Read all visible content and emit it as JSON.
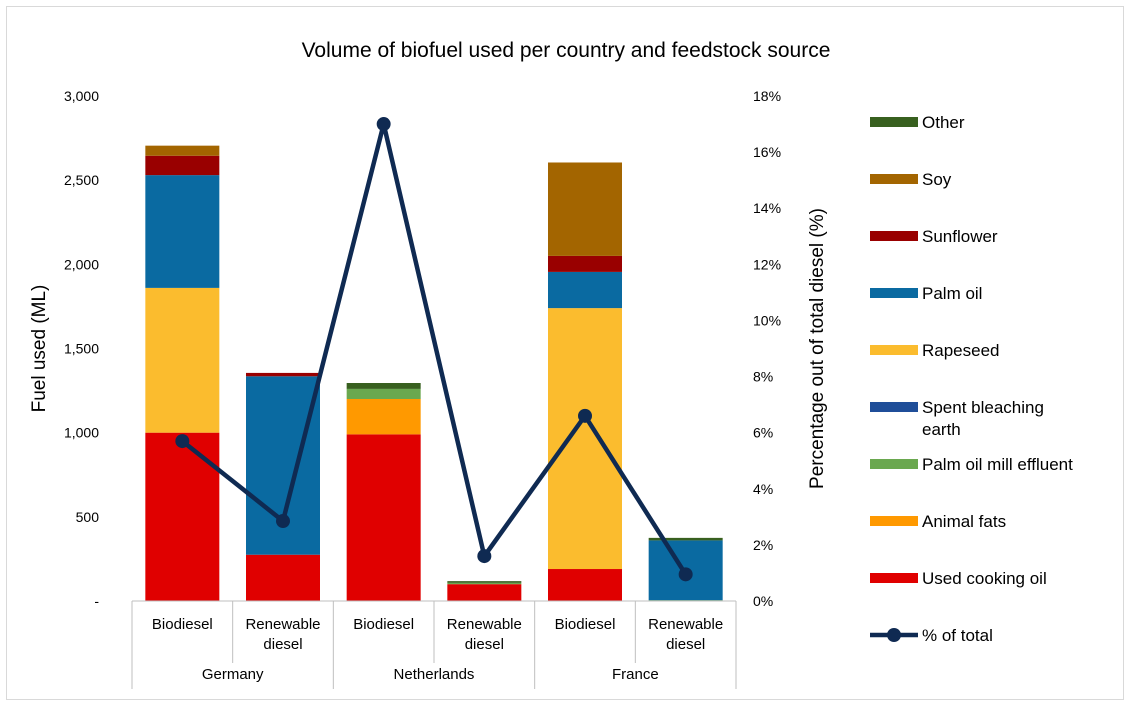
{
  "chart_data": {
    "type": "bar",
    "title": "Volume of biofuel used per country and feedstock source",
    "ylabel": "Fuel used (ML)",
    "y2label": "Percentage out of total diesel (%)",
    "ylim": [
      0,
      3000
    ],
    "y2lim": [
      0,
      18
    ],
    "y_ticks": [
      "-",
      "500",
      "1,000",
      "1,500",
      "2,000",
      "2,500",
      "3,000"
    ],
    "y2_ticks": [
      "0%",
      "2%",
      "4%",
      "6%",
      "8%",
      "10%",
      "12%",
      "14%",
      "16%",
      "18%"
    ],
    "groups": [
      "Germany",
      "Netherlands",
      "France"
    ],
    "categories": [
      [
        "Biodiesel"
      ],
      [
        "Renewable",
        "diesel"
      ],
      [
        "Biodiesel"
      ],
      [
        "Renewable",
        "diesel"
      ],
      [
        "Biodiesel"
      ],
      [
        "Renewable",
        "diesel"
      ]
    ],
    "series": [
      {
        "name": "Used cooking oil",
        "color": "#e00000",
        "values": [
          1000,
          275,
          990,
          100,
          190,
          0
        ]
      },
      {
        "name": "Animal fats",
        "color": "#ff9900",
        "values": [
          0,
          0,
          210,
          0,
          0,
          0
        ]
      },
      {
        "name": "Palm oil mill effluent",
        "color": "#6aa84f",
        "values": [
          0,
          0,
          60,
          8,
          0,
          5
        ]
      },
      {
        "name": "Spent bleaching earth",
        "color": "#1f4e99",
        "values": [
          0,
          0,
          0,
          0,
          0,
          0
        ]
      },
      {
        "name": "Rapeseed",
        "color": "#fbbc2e",
        "values": [
          860,
          0,
          0,
          0,
          1550,
          0
        ]
      },
      {
        "name": "Palm oil",
        "color": "#0a6aa1",
        "values": [
          670,
          1060,
          0,
          0,
          215,
          355
        ]
      },
      {
        "name": "Sunflower",
        "color": "#990000",
        "values": [
          115,
          20,
          0,
          0,
          95,
          0
        ]
      },
      {
        "name": "Soy",
        "color": "#a36500",
        "values": [
          60,
          0,
          0,
          0,
          555,
          0
        ]
      },
      {
        "name": "Other",
        "color": "#38601f",
        "values": [
          0,
          0,
          35,
          10,
          0,
          15
        ]
      }
    ],
    "line": {
      "name": "% of total",
      "color": "#0f2a52",
      "values": [
        5.7,
        2.85,
        17.0,
        1.6,
        6.6,
        0.95
      ]
    },
    "legend": [
      "Other",
      "Soy",
      "Sunflower",
      "Palm oil",
      "Rapeseed",
      [
        "Spent bleaching",
        "earth"
      ],
      "Palm oil mill effluent",
      "Animal fats",
      "Used cooking oil",
      "% of total"
    ],
    "legend_colors": [
      "#38601f",
      "#a36500",
      "#990000",
      "#0a6aa1",
      "#fbbc2e",
      "#1f4e99",
      "#6aa84f",
      "#ff9900",
      "#e00000",
      "#0f2a52"
    ],
    "legend_position": "right",
    "grid": false
  }
}
